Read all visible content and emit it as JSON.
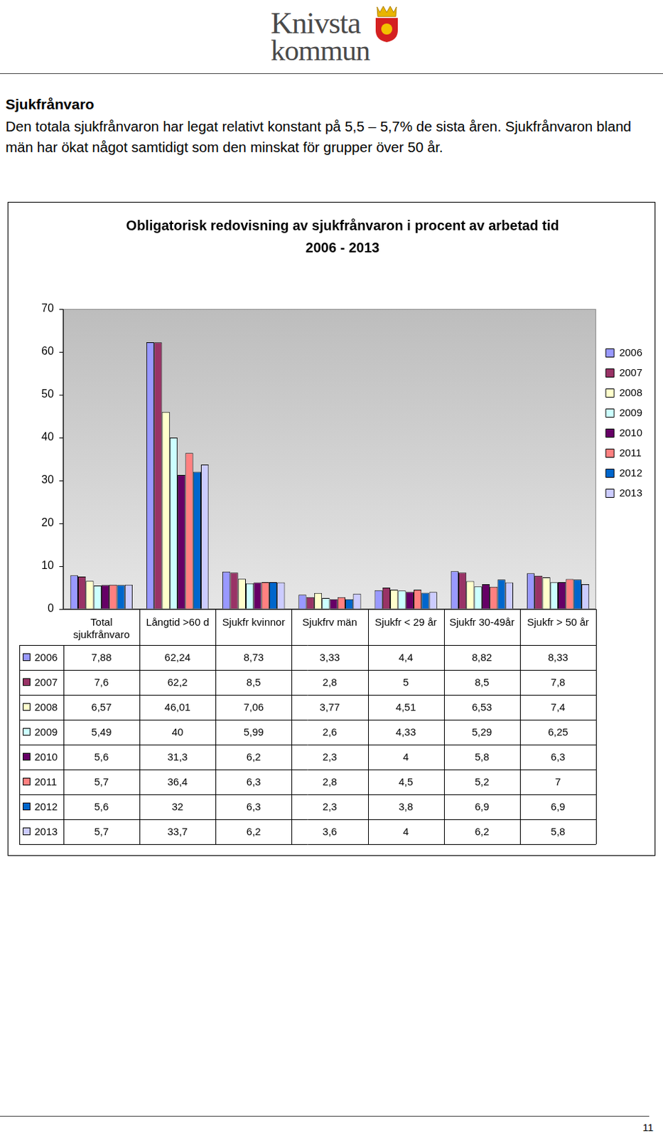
{
  "page": {
    "logo": [
      "Knivsta",
      "kommun"
    ],
    "heading": "Sjukfrånvaro",
    "paragraph": "Den totala sjukfrånvaron har legat relativt konstant på 5,5 – 5,7% de sista åren. Sjukfrånvaron bland män har ökat något samtidigt som den minskat för grupper över 50 år.",
    "page_number": "11"
  },
  "chart_data": {
    "type": "bar",
    "title": "Obligatorisk redovisning av sjukfrånvaron i procent av arbetad tid",
    "subtitle": "2006 - 2013",
    "categories": [
      "Total sjukfrånvaro",
      "Långtid >60 d",
      "Sjukfr kvinnor",
      "Sjukfrv män",
      "Sjukfr < 29 år",
      "Sjukfr 30-49år",
      "Sjukfr > 50 år"
    ],
    "series": [
      {
        "name": "2006",
        "color": "#9999ff",
        "values": [
          7.88,
          62.24,
          8.73,
          3.33,
          4.4,
          8.82,
          8.33
        ],
        "value_labels": [
          "7,88",
          "62,24",
          "8,73",
          "3,33",
          "4,4",
          "8,82",
          "8,33"
        ]
      },
      {
        "name": "2007",
        "color": "#993366",
        "values": [
          7.6,
          62.2,
          8.5,
          2.8,
          5,
          8.5,
          7.8
        ],
        "value_labels": [
          "7,6",
          "62,2",
          "8,5",
          "2,8",
          "5",
          "8,5",
          "7,8"
        ]
      },
      {
        "name": "2008",
        "color": "#ffffcc",
        "values": [
          6.57,
          46.01,
          7.06,
          3.77,
          4.51,
          6.53,
          7.4
        ],
        "value_labels": [
          "6,57",
          "46,01",
          "7,06",
          "3,77",
          "4,51",
          "6,53",
          "7,4"
        ]
      },
      {
        "name": "2009",
        "color": "#ccffff",
        "values": [
          5.49,
          40,
          5.99,
          2.6,
          4.33,
          5.29,
          6.25
        ],
        "value_labels": [
          "5,49",
          "40",
          "5,99",
          "2,6",
          "4,33",
          "5,29",
          "6,25"
        ]
      },
      {
        "name": "2010",
        "color": "#660066",
        "values": [
          5.6,
          31.3,
          6.2,
          2.3,
          4,
          5.8,
          6.3
        ],
        "value_labels": [
          "5,6",
          "31,3",
          "6,2",
          "2,3",
          "4",
          "5,8",
          "6,3"
        ]
      },
      {
        "name": "2011",
        "color": "#ff8080",
        "values": [
          5.7,
          36.4,
          6.3,
          2.8,
          4.5,
          5.2,
          7
        ],
        "value_labels": [
          "5,7",
          "36,4",
          "6,3",
          "2,8",
          "4,5",
          "5,2",
          "7"
        ]
      },
      {
        "name": "2012",
        "color": "#0066cc",
        "values": [
          5.6,
          32,
          6.3,
          2.3,
          3.8,
          6.9,
          6.9
        ],
        "value_labels": [
          "5,6",
          "32",
          "6,3",
          "2,3",
          "3,8",
          "6,9",
          "6,9"
        ]
      },
      {
        "name": "2013",
        "color": "#ccccff",
        "values": [
          5.7,
          33.7,
          6.2,
          3.6,
          4,
          6.2,
          5.8
        ],
        "value_labels": [
          "5,7",
          "33,7",
          "6,2",
          "3,6",
          "4",
          "6,2",
          "5,8"
        ]
      }
    ],
    "ylim": [
      0,
      70
    ],
    "yticks": [
      0,
      10,
      20,
      30,
      40,
      50,
      60,
      70
    ],
    "grid": false,
    "legend": "right"
  }
}
